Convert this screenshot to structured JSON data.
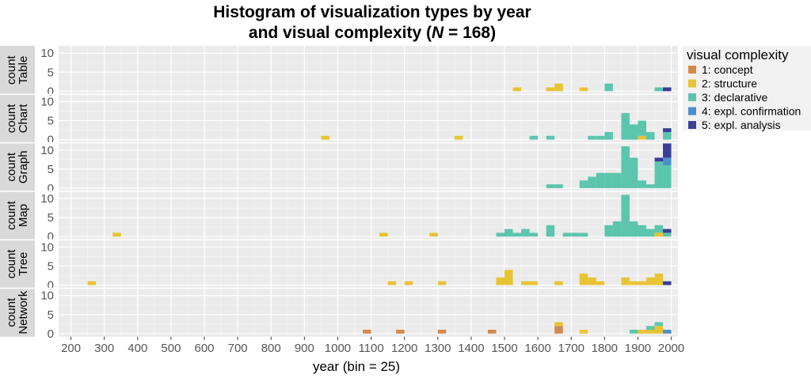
{
  "chart_data": {
    "type": "bar",
    "stacked": true,
    "faceted": true,
    "title_line1": "Histogram of visualization types by year",
    "title_line2_prefix": "and visual complexity (",
    "title_line2_n": "N",
    "title_line2_suffix": " = 168)",
    "xlabel": "year (bin = 25)",
    "ylabel": "count",
    "bin_width": 25,
    "xlim": [
      163,
      2020
    ],
    "ylim": [
      0,
      11.5
    ],
    "x_ticks": [
      200,
      300,
      400,
      500,
      600,
      700,
      800,
      900,
      1000,
      1100,
      1200,
      1300,
      1400,
      1500,
      1600,
      1700,
      1800,
      1900,
      2000
    ],
    "y_ticks": [
      0,
      5,
      10
    ],
    "legend": {
      "title": "visual complexity",
      "position": "right",
      "items": [
        {
          "label": "1: concept",
          "color": "#d4884a"
        },
        {
          "label": "2: structure",
          "color": "#e8c334"
        },
        {
          "label": "3: declarative",
          "color": "#5cc5ad"
        },
        {
          "label": "4: expl. confirmation",
          "color": "#4a8fcc"
        },
        {
          "label": "5: expl. analysis",
          "color": "#3b3e96"
        }
      ]
    },
    "facets": [
      {
        "label": "Table",
        "bins": [
          {
            "x": 1537.5,
            "counts": [
              0,
              1,
              0,
              0,
              0
            ]
          },
          {
            "x": 1637.5,
            "counts": [
              0,
              1,
              0,
              0,
              0
            ]
          },
          {
            "x": 1662.5,
            "counts": [
              0,
              2,
              0,
              0,
              0
            ]
          },
          {
            "x": 1737.5,
            "counts": [
              0,
              1,
              0,
              0,
              0
            ]
          },
          {
            "x": 1812.5,
            "counts": [
              0,
              0,
              2,
              0,
              0
            ]
          },
          {
            "x": 1962.5,
            "counts": [
              0,
              0,
              1,
              0,
              0
            ]
          },
          {
            "x": 1987.5,
            "counts": [
              0,
              0,
              0,
              0,
              1
            ]
          }
        ]
      },
      {
        "label": "Chart",
        "bins": [
          {
            "x": 962.5,
            "counts": [
              0,
              1,
              0,
              0,
              0
            ]
          },
          {
            "x": 1362.5,
            "counts": [
              0,
              1,
              0,
              0,
              0
            ]
          },
          {
            "x": 1587.5,
            "counts": [
              0,
              0,
              1,
              0,
              0
            ]
          },
          {
            "x": 1637.5,
            "counts": [
              0,
              0,
              1,
              0,
              0
            ]
          },
          {
            "x": 1762.5,
            "counts": [
              0,
              0,
              1,
              0,
              0
            ]
          },
          {
            "x": 1787.5,
            "counts": [
              0,
              0,
              1,
              0,
              0
            ]
          },
          {
            "x": 1812.5,
            "counts": [
              0,
              0,
              2,
              0,
              0
            ]
          },
          {
            "x": 1862.5,
            "counts": [
              0,
              0,
              7,
              0,
              0
            ]
          },
          {
            "x": 1887.5,
            "counts": [
              0,
              0,
              4,
              0,
              0
            ]
          },
          {
            "x": 1912.5,
            "counts": [
              0,
              1,
              4,
              0,
              0
            ]
          },
          {
            "x": 1937.5,
            "counts": [
              0,
              0,
              2,
              0,
              0
            ]
          },
          {
            "x": 1987.5,
            "counts": [
              0,
              0,
              2,
              0,
              1
            ]
          }
        ]
      },
      {
        "label": "Graph",
        "bins": [
          {
            "x": 1637.5,
            "counts": [
              0,
              0,
              1,
              0,
              0
            ]
          },
          {
            "x": 1662.5,
            "counts": [
              0,
              0,
              1,
              0,
              0
            ]
          },
          {
            "x": 1737.5,
            "counts": [
              0,
              0,
              2,
              0,
              0
            ]
          },
          {
            "x": 1762.5,
            "counts": [
              0,
              0,
              3,
              0,
              0
            ]
          },
          {
            "x": 1787.5,
            "counts": [
              0,
              0,
              4,
              0,
              0
            ]
          },
          {
            "x": 1812.5,
            "counts": [
              0,
              0,
              4,
              0,
              0
            ]
          },
          {
            "x": 1837.5,
            "counts": [
              0,
              0,
              4,
              0,
              0
            ]
          },
          {
            "x": 1862.5,
            "counts": [
              0,
              0,
              11,
              0,
              0
            ]
          },
          {
            "x": 1887.5,
            "counts": [
              0,
              0,
              8,
              0,
              0
            ]
          },
          {
            "x": 1912.5,
            "counts": [
              0,
              0,
              2,
              0,
              0
            ]
          },
          {
            "x": 1937.5,
            "counts": [
              0,
              0,
              1,
              0,
              0
            ]
          },
          {
            "x": 1962.5,
            "counts": [
              0,
              0,
              7,
              0,
              1
            ]
          },
          {
            "x": 1987.5,
            "counts": [
              0,
              0,
              6,
              2,
              4
            ]
          }
        ]
      },
      {
        "label": "Map",
        "bins": [
          {
            "x": 337.5,
            "counts": [
              0,
              1,
              0,
              0,
              0
            ]
          },
          {
            "x": 1137.5,
            "counts": [
              0,
              1,
              0,
              0,
              0
            ]
          },
          {
            "x": 1287.5,
            "counts": [
              0,
              1,
              0,
              0,
              0
            ]
          },
          {
            "x": 1487.5,
            "counts": [
              0,
              0,
              1,
              0,
              0
            ]
          },
          {
            "x": 1512.5,
            "counts": [
              0,
              0,
              2,
              0,
              0
            ]
          },
          {
            "x": 1537.5,
            "counts": [
              0,
              0,
              1,
              0,
              0
            ]
          },
          {
            "x": 1562.5,
            "counts": [
              0,
              0,
              2,
              0,
              0
            ]
          },
          {
            "x": 1587.5,
            "counts": [
              0,
              0,
              1,
              0,
              0
            ]
          },
          {
            "x": 1637.5,
            "counts": [
              0,
              0,
              3,
              0,
              0
            ]
          },
          {
            "x": 1687.5,
            "counts": [
              0,
              0,
              1,
              0,
              0
            ]
          },
          {
            "x": 1712.5,
            "counts": [
              0,
              0,
              1,
              0,
              0
            ]
          },
          {
            "x": 1737.5,
            "counts": [
              0,
              0,
              1,
              0,
              0
            ]
          },
          {
            "x": 1812.5,
            "counts": [
              0,
              0,
              3,
              0,
              0
            ]
          },
          {
            "x": 1837.5,
            "counts": [
              0,
              0,
              4,
              0,
              0
            ]
          },
          {
            "x": 1862.5,
            "counts": [
              0,
              0,
              11,
              0,
              0
            ]
          },
          {
            "x": 1887.5,
            "counts": [
              0,
              0,
              4,
              0,
              0
            ]
          },
          {
            "x": 1912.5,
            "counts": [
              0,
              0,
              3,
              0,
              0
            ]
          },
          {
            "x": 1937.5,
            "counts": [
              0,
              0,
              2,
              0,
              0
            ]
          },
          {
            "x": 1962.5,
            "counts": [
              0,
              1,
              2,
              0,
              0
            ]
          },
          {
            "x": 1987.5,
            "counts": [
              0,
              0,
              1,
              0,
              1
            ]
          }
        ]
      },
      {
        "label": "Tree",
        "bins": [
          {
            "x": 262.5,
            "counts": [
              0,
              1,
              0,
              0,
              0
            ]
          },
          {
            "x": 1162.5,
            "counts": [
              0,
              1,
              0,
              0,
              0
            ]
          },
          {
            "x": 1212.5,
            "counts": [
              0,
              1,
              0,
              0,
              0
            ]
          },
          {
            "x": 1312.5,
            "counts": [
              0,
              1,
              0,
              0,
              0
            ]
          },
          {
            "x": 1487.5,
            "counts": [
              0,
              2,
              0,
              0,
              0
            ]
          },
          {
            "x": 1512.5,
            "counts": [
              0,
              4,
              0,
              0,
              0
            ]
          },
          {
            "x": 1562.5,
            "counts": [
              0,
              1,
              0,
              0,
              0
            ]
          },
          {
            "x": 1587.5,
            "counts": [
              0,
              1,
              0,
              0,
              0
            ]
          },
          {
            "x": 1662.5,
            "counts": [
              0,
              1,
              0,
              0,
              0
            ]
          },
          {
            "x": 1737.5,
            "counts": [
              0,
              3,
              0,
              0,
              0
            ]
          },
          {
            "x": 1762.5,
            "counts": [
              0,
              2,
              0,
              0,
              0
            ]
          },
          {
            "x": 1787.5,
            "counts": [
              0,
              1,
              0,
              0,
              0
            ]
          },
          {
            "x": 1862.5,
            "counts": [
              0,
              2,
              0,
              0,
              0
            ]
          },
          {
            "x": 1887.5,
            "counts": [
              0,
              1,
              0,
              0,
              0
            ]
          },
          {
            "x": 1912.5,
            "counts": [
              0,
              1,
              0,
              0,
              0
            ]
          },
          {
            "x": 1937.5,
            "counts": [
              0,
              2,
              0,
              0,
              0
            ]
          },
          {
            "x": 1962.5,
            "counts": [
              0,
              3,
              0,
              0,
              0
            ]
          },
          {
            "x": 1987.5,
            "counts": [
              0,
              0,
              0,
              0,
              1
            ]
          }
        ]
      },
      {
        "label": "Network",
        "bins": [
          {
            "x": 1087.5,
            "counts": [
              1,
              0,
              0,
              0,
              0
            ]
          },
          {
            "x": 1187.5,
            "counts": [
              1,
              0,
              0,
              0,
              0
            ]
          },
          {
            "x": 1312.5,
            "counts": [
              1,
              0,
              0,
              0,
              0
            ]
          },
          {
            "x": 1462.5,
            "counts": [
              1,
              0,
              0,
              0,
              0
            ]
          },
          {
            "x": 1662.5,
            "counts": [
              2,
              1,
              0,
              0,
              0
            ]
          },
          {
            "x": 1737.5,
            "counts": [
              0,
              1,
              0,
              0,
              0
            ]
          },
          {
            "x": 1887.5,
            "counts": [
              0,
              0,
              1,
              0,
              0
            ]
          },
          {
            "x": 1912.5,
            "counts": [
              0,
              1,
              0,
              0,
              0
            ]
          },
          {
            "x": 1937.5,
            "counts": [
              0,
              1,
              1,
              0,
              0
            ]
          },
          {
            "x": 1962.5,
            "counts": [
              0,
              2,
              1,
              0,
              0
            ]
          },
          {
            "x": 1987.5,
            "counts": [
              0,
              0,
              0,
              1,
              0
            ]
          }
        ]
      }
    ]
  }
}
